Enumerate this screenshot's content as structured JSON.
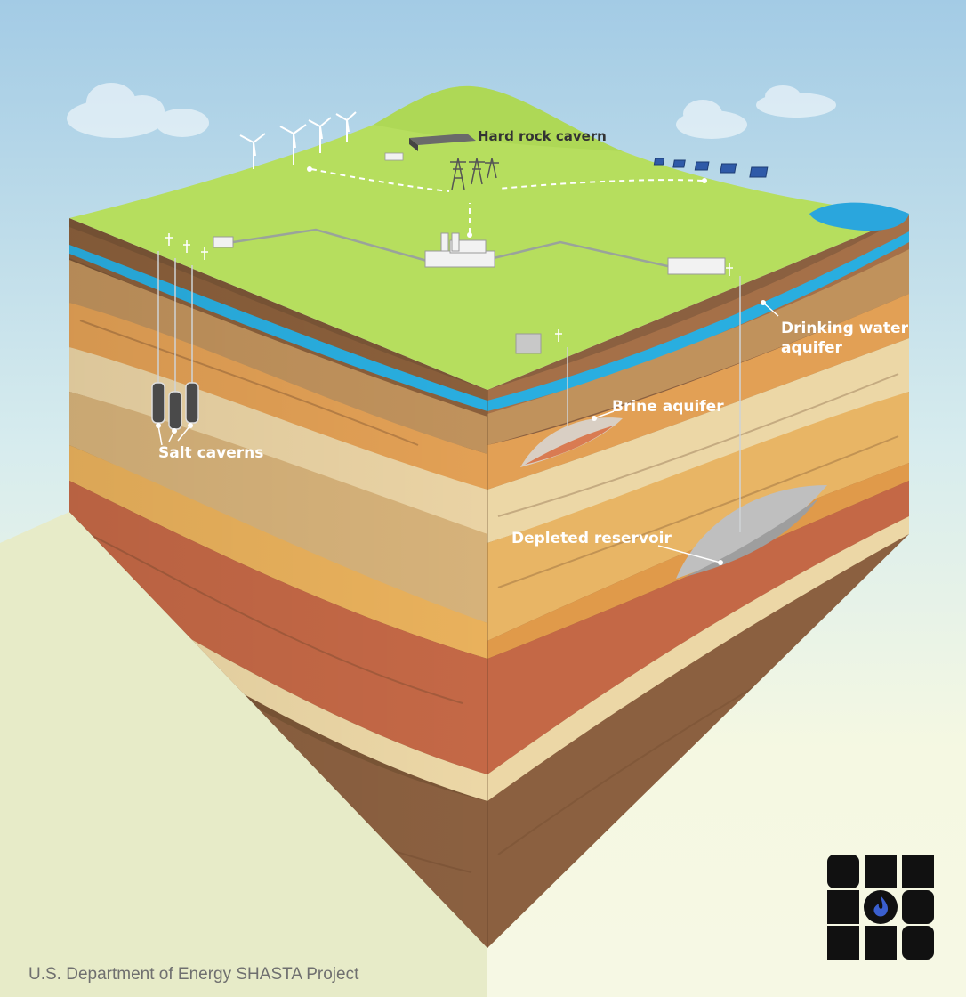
{
  "labels": {
    "hard_rock_cavern": "Hard rock cavern",
    "drinking_water_line1": "Drinking water",
    "drinking_water_line2": "aquifer",
    "brine_aquifer": "Brine aquifer",
    "salt_caverns": "Salt caverns",
    "depleted_reservoir": "Depleted reservoir"
  },
  "credit": "U.S. Department of Energy SHASTA Project",
  "colors": {
    "sky_top": "#a6cde6",
    "sky_bottom": "#f6f8e4",
    "grass": "#b6de5e",
    "aquifer_blue": "#2ab4e0",
    "logo": "#111111",
    "logo_flame": "#3a5fce"
  }
}
